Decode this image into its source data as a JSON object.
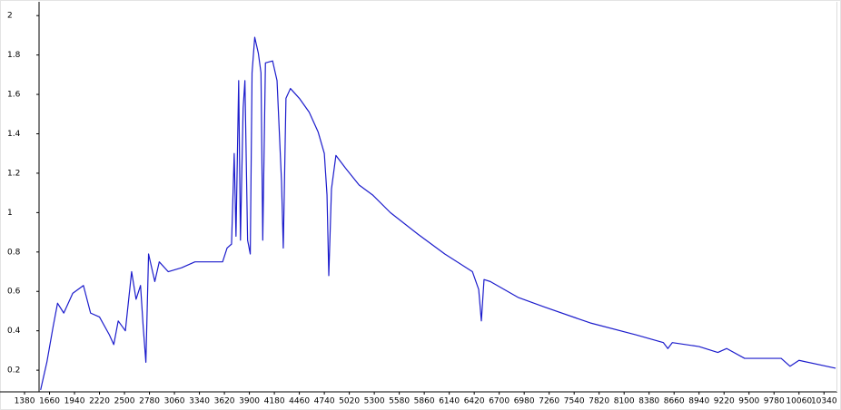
{
  "chart_data": {
    "type": "line",
    "x": [
      1560,
      1630,
      1700,
      1750,
      1820,
      1920,
      2040,
      2120,
      2220,
      2330,
      2380,
      2430,
      2510,
      2580,
      2630,
      2680,
      2710,
      2740,
      2770,
      2840,
      2890,
      2990,
      3140,
      3290,
      3450,
      3600,
      3650,
      3700,
      3730,
      3750,
      3780,
      3800,
      3830,
      3850,
      3880,
      3910,
      3930,
      3960,
      4000,
      4030,
      4050,
      4080,
      4160,
      4210,
      4260,
      4280,
      4310,
      4360,
      4460,
      4570,
      4670,
      4740,
      4770,
      4790,
      4820,
      4870,
      4970,
      5130,
      5280,
      5480,
      5790,
      6090,
      6400,
      6470,
      6500,
      6530,
      6600,
      6910,
      7210,
      7720,
      8230,
      8540,
      8590,
      8640,
      8940,
      9150,
      9250,
      9450,
      9860,
      9960,
      10060,
      10470
    ],
    "series": [
      {
        "color": "#1c1ccc",
        "values": [
          0.1,
          0.24,
          0.42,
          0.54,
          0.49,
          0.59,
          0.63,
          0.49,
          0.47,
          0.38,
          0.33,
          0.45,
          0.4,
          0.7,
          0.56,
          0.63,
          0.42,
          0.24,
          0.79,
          0.65,
          0.75,
          0.7,
          0.72,
          0.75,
          0.75,
          0.75,
          0.82,
          0.84,
          1.3,
          0.88,
          1.67,
          0.86,
          1.53,
          1.67,
          0.86,
          0.79,
          1.71,
          1.89,
          1.81,
          1.71,
          0.86,
          1.76,
          1.77,
          1.67,
          1.16,
          0.82,
          1.58,
          1.63,
          1.58,
          1.51,
          1.41,
          1.3,
          1.09,
          0.68,
          1.12,
          1.29,
          1.23,
          1.14,
          1.09,
          1.0,
          0.89,
          0.79,
          0.7,
          0.61,
          0.45,
          0.66,
          0.65,
          0.57,
          0.52,
          0.44,
          0.38,
          0.34,
          0.31,
          0.34,
          0.32,
          0.29,
          0.31,
          0.26,
          0.26,
          0.22,
          0.25,
          0.21
        ]
      }
    ],
    "xlim": [
      1105,
      10490
    ],
    "xticks": [
      1380,
      1660,
      1940,
      2220,
      2500,
      2780,
      3060,
      3340,
      3620,
      3900,
      4180,
      4460,
      4740,
      5020,
      5300,
      5580,
      5860,
      6140,
      6420,
      6700,
      6980,
      7260,
      7540,
      7820,
      8100,
      8380,
      8660,
      8940,
      9220,
      9500,
      9780,
      10060,
      10340
    ],
    "ylim": [
      0.09,
      2.07
    ],
    "yticks": [
      0.2,
      0.4,
      0.6,
      0.8,
      1,
      1.2,
      1.4,
      1.6,
      1.8,
      2
    ],
    "grid": false
  }
}
